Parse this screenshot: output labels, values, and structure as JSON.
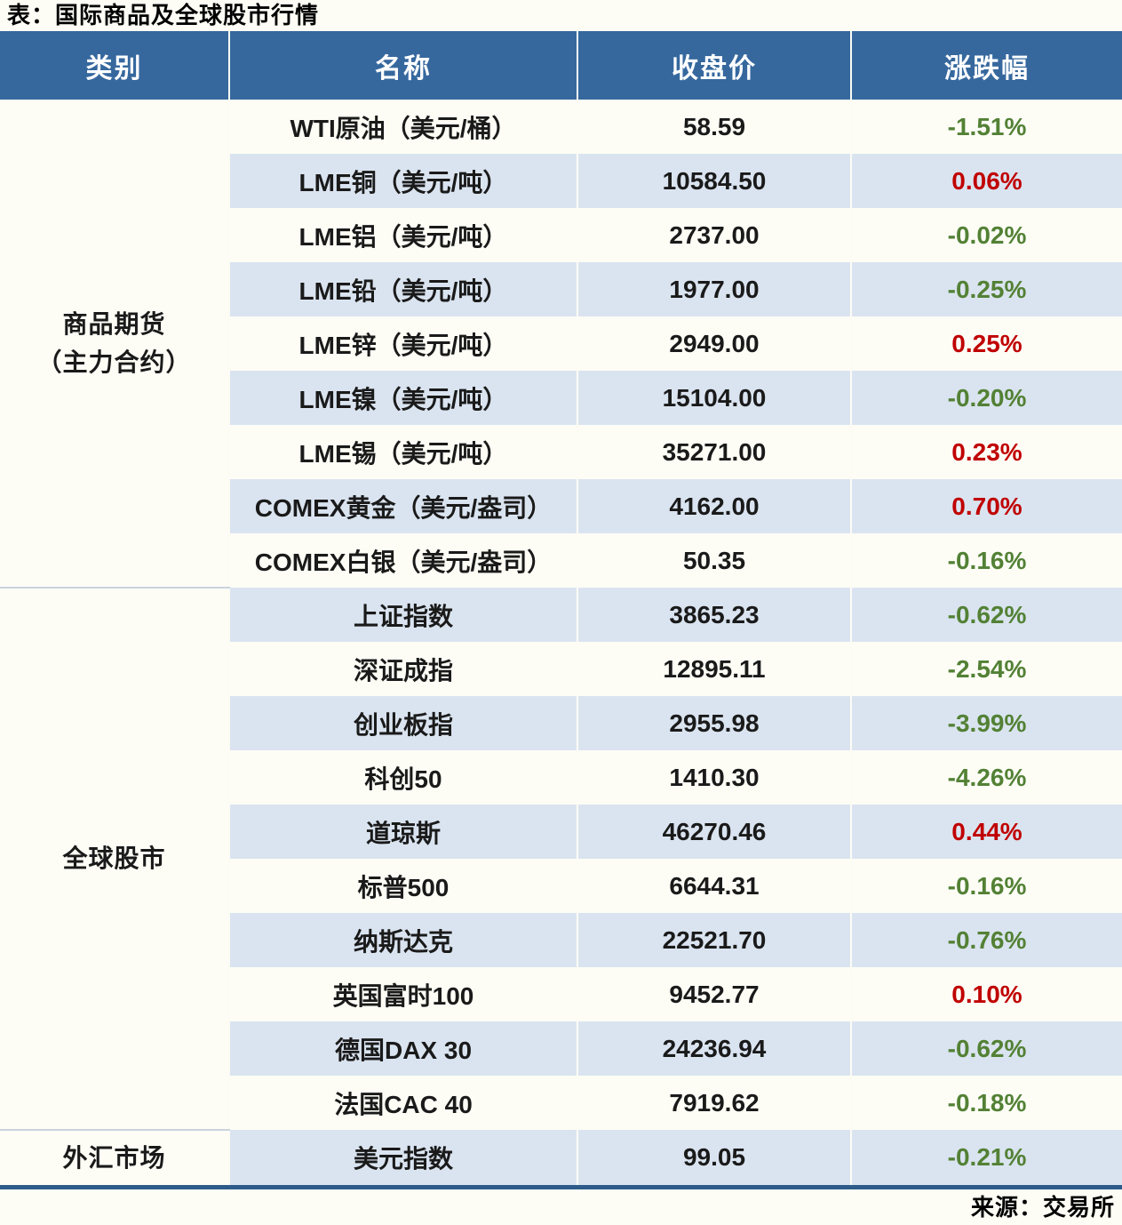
{
  "title": "表：国际商品及全球股市行情",
  "source": "来源：交易所",
  "colors": {
    "header_bg": "#36689E",
    "band_blue": "#DAE4F0",
    "up_red": "#C00000",
    "down_green": "#538135",
    "border_dark": "#2E5C8A"
  },
  "table": {
    "headers": [
      "类别",
      "名称",
      "收盘价",
      "涨跌幅"
    ],
    "groups": [
      {
        "category_lines": [
          "商品期货",
          "（主力合约）"
        ],
        "rows": [
          {
            "name": "WTI原油（美元/桶）",
            "close": "58.59",
            "change": "-1.51%",
            "trend": "down"
          },
          {
            "name": "LME铜（美元/吨）",
            "close": "10584.50",
            "change": "0.06%",
            "trend": "up"
          },
          {
            "name": "LME铝（美元/吨）",
            "close": "2737.00",
            "change": "-0.02%",
            "trend": "down"
          },
          {
            "name": "LME铅（美元/吨）",
            "close": "1977.00",
            "change": "-0.25%",
            "trend": "down"
          },
          {
            "name": "LME锌（美元/吨）",
            "close": "2949.00",
            "change": "0.25%",
            "trend": "up"
          },
          {
            "name": "LME镍（美元/吨）",
            "close": "15104.00",
            "change": "-0.20%",
            "trend": "down"
          },
          {
            "name": "LME锡（美元/吨）",
            "close": "35271.00",
            "change": "0.23%",
            "trend": "up"
          },
          {
            "name": "COMEX黄金（美元/盎司）",
            "close": "4162.00",
            "change": "0.70%",
            "trend": "up"
          },
          {
            "name": "COMEX白银（美元/盎司）",
            "close": "50.35",
            "change": "-0.16%",
            "trend": "down"
          }
        ]
      },
      {
        "category_lines": [
          "全球股市"
        ],
        "rows": [
          {
            "name": "上证指数",
            "close": "3865.23",
            "change": "-0.62%",
            "trend": "down"
          },
          {
            "name": "深证成指",
            "close": "12895.11",
            "change": "-2.54%",
            "trend": "down"
          },
          {
            "name": "创业板指",
            "close": "2955.98",
            "change": "-3.99%",
            "trend": "down"
          },
          {
            "name": "科创50",
            "close": "1410.30",
            "change": "-4.26%",
            "trend": "down"
          },
          {
            "name": "道琼斯",
            "close": "46270.46",
            "change": "0.44%",
            "trend": "up"
          },
          {
            "name": "标普500",
            "close": "6644.31",
            "change": "-0.16%",
            "trend": "down"
          },
          {
            "name": "纳斯达克",
            "close": "22521.70",
            "change": "-0.76%",
            "trend": "down"
          },
          {
            "name": "英国富时100",
            "close": "9452.77",
            "change": "0.10%",
            "trend": "up"
          },
          {
            "name": "德国DAX 30",
            "close": "24236.94",
            "change": "-0.62%",
            "trend": "down"
          },
          {
            "name": "法国CAC 40",
            "close": "7919.62",
            "change": "-0.18%",
            "trend": "down"
          }
        ]
      },
      {
        "category_lines": [
          "外汇市场"
        ],
        "rows": [
          {
            "name": "美元指数",
            "close": "99.05",
            "change": "-0.21%",
            "trend": "down"
          }
        ]
      }
    ]
  },
  "chart_data": {
    "type": "table",
    "title": "表：国际商品及全球股市行情",
    "source": "来源：交易所",
    "columns": [
      "类别",
      "名称",
      "收盘价",
      "涨跌幅"
    ],
    "rows": [
      [
        "商品期货（主力合约）",
        "WTI原油（美元/桶）",
        58.59,
        "-1.51%"
      ],
      [
        "商品期货（主力合约）",
        "LME铜（美元/吨）",
        10584.5,
        "0.06%"
      ],
      [
        "商品期货（主力合约）",
        "LME铝（美元/吨）",
        2737.0,
        "-0.02%"
      ],
      [
        "商品期货（主力合约）",
        "LME铅（美元/吨）",
        1977.0,
        "-0.25%"
      ],
      [
        "商品期货（主力合约）",
        "LME锌（美元/吨）",
        2949.0,
        "0.25%"
      ],
      [
        "商品期货（主力合约）",
        "LME镍（美元/吨）",
        15104.0,
        "-0.20%"
      ],
      [
        "商品期货（主力合约）",
        "LME锡（美元/吨）",
        35271.0,
        "0.23%"
      ],
      [
        "商品期货（主力合约）",
        "COMEX黄金（美元/盎司）",
        4162.0,
        "0.70%"
      ],
      [
        "商品期货（主力合约）",
        "COMEX白银（美元/盎司）",
        50.35,
        "-0.16%"
      ],
      [
        "全球股市",
        "上证指数",
        3865.23,
        "-0.62%"
      ],
      [
        "全球股市",
        "深证成指",
        12895.11,
        "-2.54%"
      ],
      [
        "全球股市",
        "创业板指",
        2955.98,
        "-3.99%"
      ],
      [
        "全球股市",
        "科创50",
        1410.3,
        "-4.26%"
      ],
      [
        "全球股市",
        "道琼斯",
        46270.46,
        "0.44%"
      ],
      [
        "全球股市",
        "标普500",
        6644.31,
        "-0.16%"
      ],
      [
        "全球股市",
        "纳斯达克",
        22521.7,
        "-0.76%"
      ],
      [
        "全球股市",
        "英国富时100",
        9452.77,
        "0.10%"
      ],
      [
        "全球股市",
        "德国DAX 30",
        24236.94,
        "-0.62%"
      ],
      [
        "全球股市",
        "法国CAC 40",
        7919.62,
        "-0.18%"
      ],
      [
        "外汇市场",
        "美元指数",
        99.05,
        "-0.21%"
      ]
    ],
    "legend_note": "red = up (涨), green = down (跌)"
  }
}
